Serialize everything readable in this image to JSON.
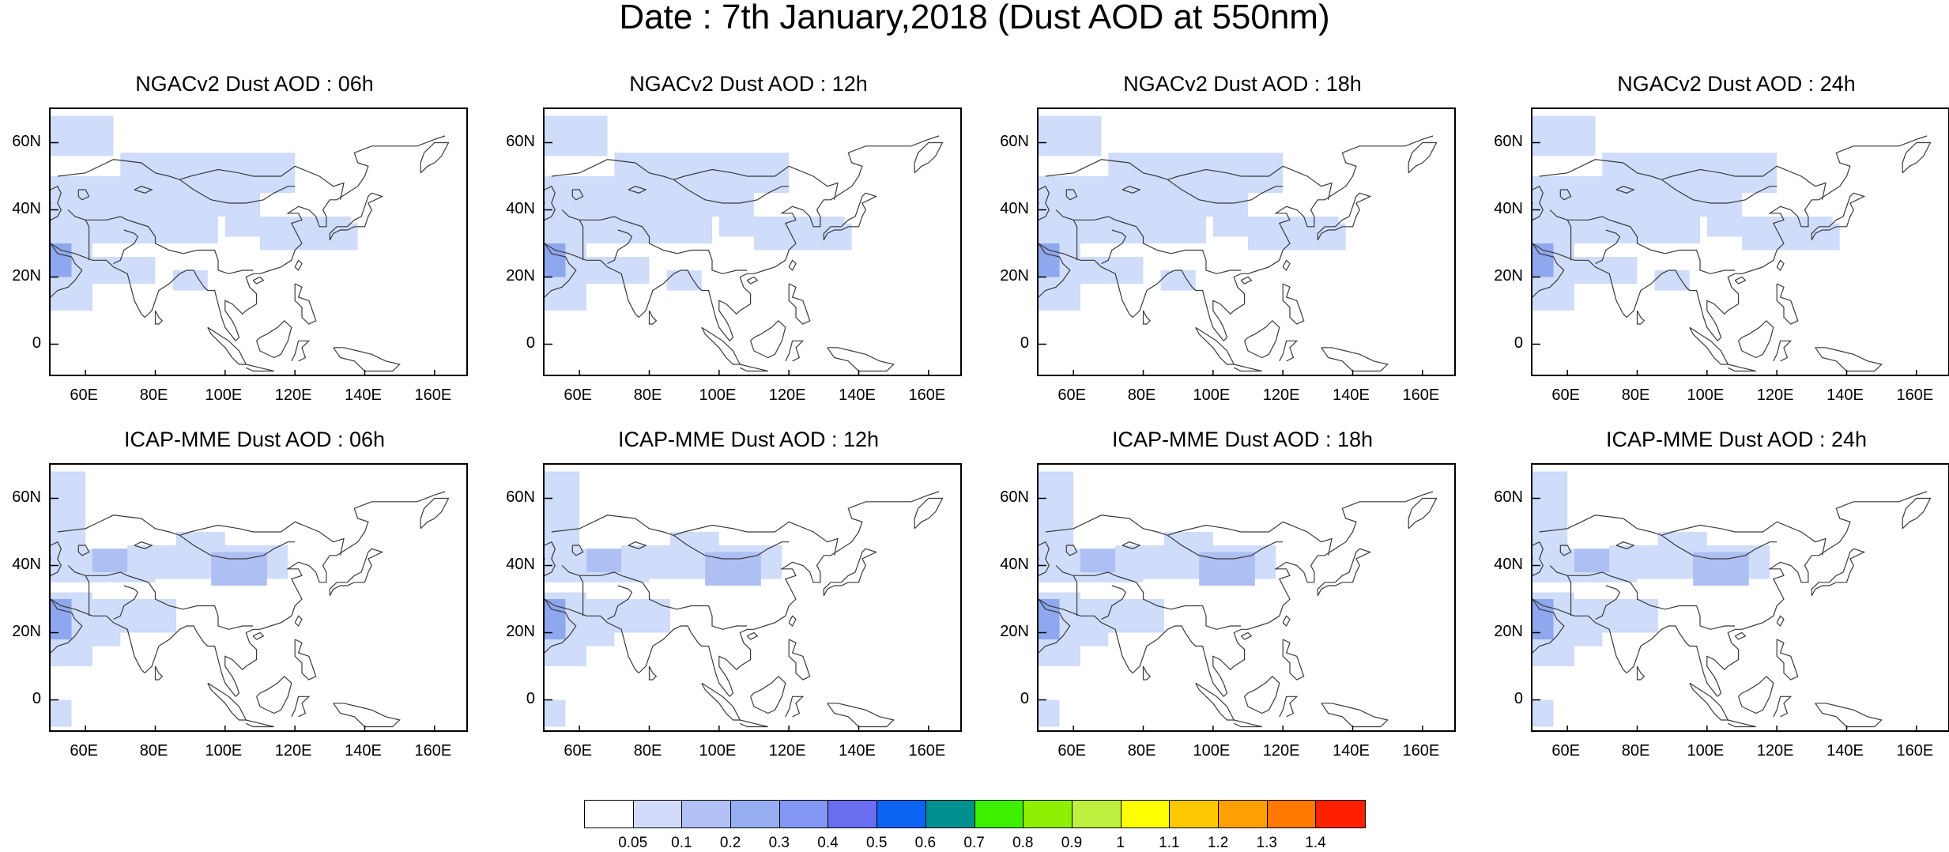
{
  "title": "Date : 7th January,2018 (Dust AOD at 550nm)",
  "colors": {
    "land_outline": "#3a3a3a",
    "frame": "#000000",
    "light_blue": "#cfdcfa",
    "medium_blue": "#aebff3",
    "blue3": "#8ea7ee",
    "blue4": "#7f8af0"
  },
  "y_ticks": [
    "60N",
    "40N",
    "20N",
    "0"
  ],
  "x_ticks": [
    "60E",
    "80E",
    "100E",
    "120E",
    "140E",
    "160E"
  ],
  "panels": [
    {
      "title": "NGACv2 Dust AOD : 06h"
    },
    {
      "title": "NGACv2 Dust AOD : 12h"
    },
    {
      "title": "NGACv2 Dust AOD : 18h"
    },
    {
      "title": "NGACv2 Dust AOD : 24h"
    },
    {
      "title": "ICAP-MME Dust AOD : 06h"
    },
    {
      "title": "ICAP-MME Dust AOD : 12h"
    },
    {
      "title": "ICAP-MME Dust AOD : 18h"
    },
    {
      "title": "ICAP-MME Dust AOD : 24h"
    }
  ],
  "colorbar": {
    "colors": [
      "#ffffff",
      "#d2dcfa",
      "#b1c1f5",
      "#97aef3",
      "#8296f2",
      "#6a6ef0",
      "#0b64f2",
      "#009090",
      "#3cf000",
      "#8cf000",
      "#bef040",
      "#ffff00",
      "#ffc800",
      "#ffa000",
      "#ff7800",
      "#ff2000"
    ],
    "labels": [
      "0.05",
      "0.1",
      "0.2",
      "0.3",
      "0.4",
      "0.5",
      "0.6",
      "0.7",
      "0.8",
      "0.9",
      "1",
      "1.1",
      "1.2",
      "1.3",
      "1.4"
    ]
  }
}
